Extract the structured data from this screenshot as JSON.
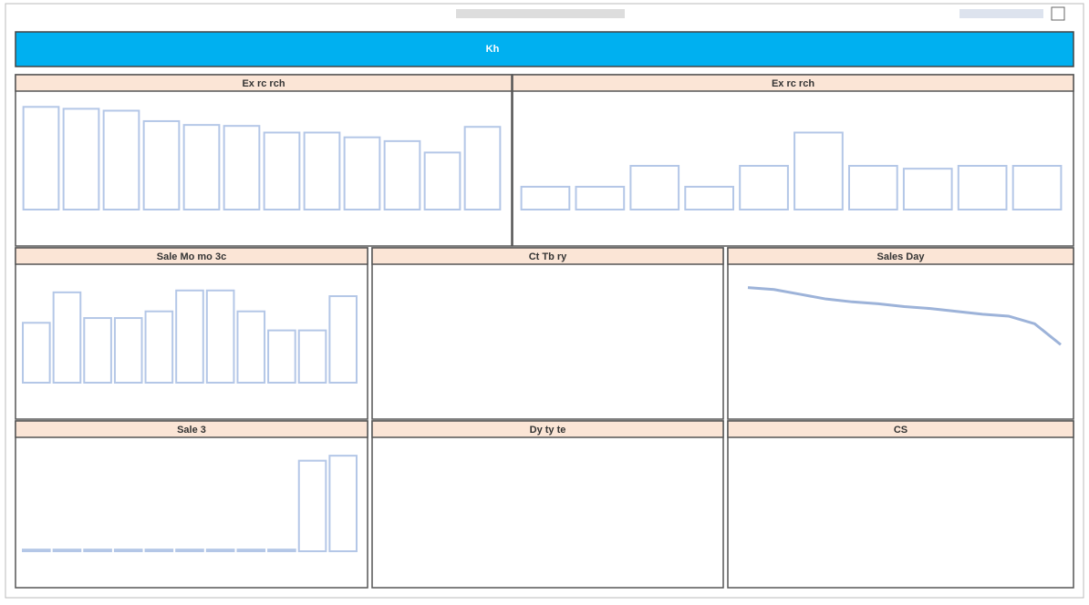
{
  "header": {
    "banner": "Kh"
  },
  "panels": [
    {
      "title": "Ex rc rch",
      "type": "bar",
      "values": [
        108,
        106,
        104,
        93,
        89,
        88,
        81,
        81,
        76,
        72,
        60,
        87
      ],
      "ylim": [
        0,
        115
      ]
    },
    {
      "title": "Ex rc rch",
      "type": "bar",
      "values": [
        24,
        24,
        46,
        24,
        46,
        81,
        46,
        43,
        46,
        46
      ],
      "ylim": [
        0,
        115
      ]
    },
    {
      "title": "Sale Mo mo 3c",
      "type": "bar",
      "values": [
        63,
        95,
        68,
        68,
        75,
        97,
        97,
        75,
        55,
        55,
        91
      ],
      "ylim": [
        0,
        115
      ]
    },
    {
      "title": "Ct Tb ry",
      "type": "none"
    },
    {
      "title": "Sales Day",
      "type": "line",
      "values": [
        100,
        98,
        93,
        88,
        85,
        83,
        80,
        78,
        75,
        72,
        70,
        62,
        40
      ],
      "ylim": [
        0,
        115
      ]
    },
    {
      "title": "Sale 3",
      "type": "bar",
      "values": [
        2,
        2,
        2,
        2,
        2,
        2,
        2,
        2,
        2,
        108,
        114
      ],
      "ylim": [
        0,
        125
      ]
    },
    {
      "title": "Dy ty te",
      "type": "none"
    },
    {
      "title": "CS",
      "type": "none"
    }
  ]
}
